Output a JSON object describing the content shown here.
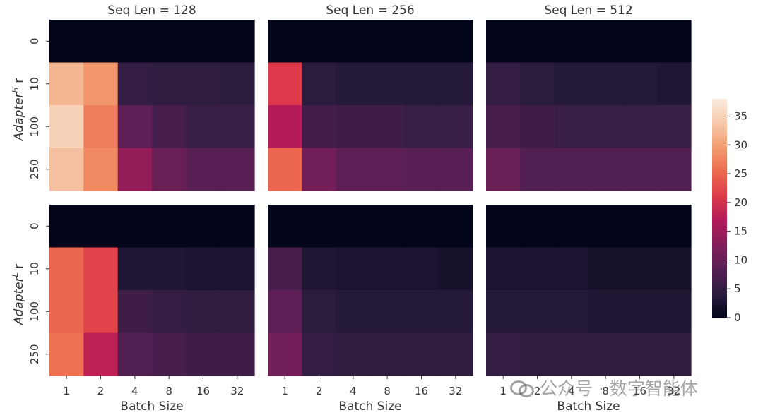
{
  "chart_data": {
    "type": "heatmap",
    "panels": [
      {
        "title": "Seq Len = 128",
        "row": 0,
        "col": 0,
        "values": [
          [
            0,
            0,
            0,
            0,
            0,
            0
          ],
          [
            32,
            29,
            5,
            4.5,
            4.5,
            4
          ],
          [
            35,
            27,
            9,
            7,
            5.5,
            5.5
          ],
          [
            33,
            28,
            14,
            10,
            8.5,
            8.5
          ]
        ]
      },
      {
        "title": "Seq Len = 256",
        "row": 0,
        "col": 1,
        "values": [
          [
            0,
            0,
            0,
            0,
            0,
            0
          ],
          [
            21,
            4,
            3.5,
            3.5,
            3.5,
            3.5
          ],
          [
            17,
            6.5,
            6,
            6,
            5.5,
            5.5
          ],
          [
            25,
            11,
            9,
            9,
            8.5,
            8.5
          ]
        ]
      },
      {
        "title": "Seq Len = 512",
        "row": 0,
        "col": 2,
        "values": [
          [
            0,
            0,
            0,
            0,
            0,
            0
          ],
          [
            5,
            4,
            3.5,
            3.5,
            3.5,
            3
          ],
          [
            7,
            6,
            5.5,
            5.5,
            5.5,
            5.5
          ],
          [
            10,
            8,
            8,
            8,
            8,
            8
          ]
        ]
      },
      {
        "title": "",
        "row": 1,
        "col": 0,
        "values": [
          [
            0,
            0,
            0,
            0,
            0,
            0
          ],
          [
            25,
            22,
            3,
            3,
            2.5,
            2.5
          ],
          [
            25,
            22,
            6,
            5,
            4.5,
            4.5
          ],
          [
            26,
            18,
            8,
            7,
            6,
            6
          ]
        ]
      },
      {
        "title": "",
        "row": 1,
        "col": 1,
        "values": [
          [
            0,
            0,
            0,
            0,
            0,
            0
          ],
          [
            7,
            3,
            2.5,
            2.5,
            2.5,
            2
          ],
          [
            9,
            4,
            3.5,
            3.5,
            3.5,
            3.5
          ],
          [
            11,
            5,
            4.5,
            4.5,
            4.5,
            4.5
          ]
        ]
      },
      {
        "title": "",
        "row": 1,
        "col": 2,
        "values": [
          [
            0,
            0,
            0,
            0,
            0,
            0
          ],
          [
            2.5,
            2.5,
            2.5,
            2,
            2,
            2
          ],
          [
            3.5,
            3.5,
            3.5,
            3,
            3,
            3
          ],
          [
            5,
            4.5,
            4.5,
            4.5,
            4.5,
            4.5
          ]
        ]
      }
    ],
    "x_categories": [
      "1",
      "2",
      "4",
      "8",
      "16",
      "32"
    ],
    "y_categories": [
      "0",
      "10",
      "100",
      "250"
    ],
    "xlabel": "Batch Size",
    "ylabels": [
      {
        "prefix": "Adapter",
        "sup": "H",
        "suffix": " r"
      },
      {
        "prefix": "Adapter",
        "sup": "L",
        "suffix": " r"
      }
    ],
    "colorbar": {
      "min": 0,
      "max": 38,
      "ticks": [
        0,
        5,
        10,
        15,
        20,
        25,
        30,
        35
      ]
    }
  },
  "colormap": [
    "#03051a",
    "#2b1d3e",
    "#571f54",
    "#841e5a",
    "#b31a58",
    "#de3a4a",
    "#ec6a4e",
    "#f29c6f",
    "#f6c8aa",
    "#faebdd"
  ],
  "watermark": {
    "text": "公众号 · 数字智能体"
  }
}
